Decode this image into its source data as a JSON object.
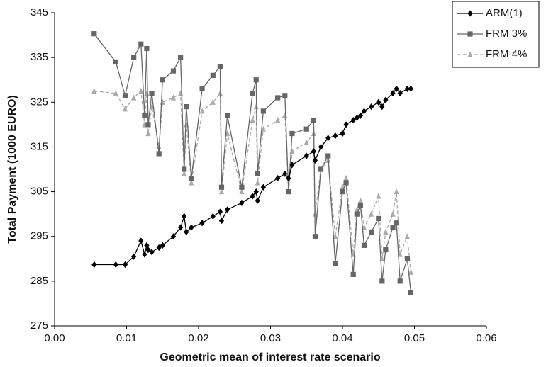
{
  "chart_data": {
    "type": "line",
    "x_label": "Geometric mean of interest rate scenario",
    "y_label": "Total Payment (1000 EURO)",
    "xlim": [
      0,
      0.06
    ],
    "xticks": [
      {
        "value": 0,
        "label": "0.00"
      },
      0.01,
      0.02,
      0.03,
      0.04,
      0.05,
      0.06
    ],
    "ylim": [
      275,
      345
    ],
    "yticks": [
      275,
      285,
      295,
      305,
      315,
      325,
      335,
      345
    ],
    "grid": false,
    "legend": "top-right",
    "x": [
      0.0055,
      0.0085,
      0.0098,
      0.011,
      0.012,
      0.0125,
      0.0128,
      0.013,
      0.0135,
      0.0145,
      0.015,
      0.0165,
      0.0175,
      0.018,
      0.0183,
      0.019,
      0.0205,
      0.022,
      0.023,
      0.0232,
      0.024,
      0.026,
      0.0275,
      0.028,
      0.0282,
      0.029,
      0.031,
      0.032,
      0.0325,
      0.033,
      0.035,
      0.036,
      0.0362,
      0.037,
      0.038,
      0.039,
      0.04,
      0.0405,
      0.0415,
      0.042,
      0.0425,
      0.043,
      0.044,
      0.045,
      0.0455,
      0.046,
      0.047,
      0.0475,
      0.048,
      0.049,
      0.0495
    ],
    "series": [
      {
        "name": "ARM(1)",
        "color": "#000000",
        "marker": "diamond",
        "dashed": false,
        "values": [
          288.7,
          288.7,
          288.7,
          290.5,
          294,
          291,
          293,
          292,
          291.5,
          292.5,
          293,
          295,
          297,
          299.5,
          296,
          297,
          298,
          299.5,
          300.5,
          298.5,
          301,
          302.5,
          304,
          305,
          303,
          306,
          308,
          309,
          308,
          311,
          313,
          314,
          312,
          315,
          317,
          317.5,
          318,
          320,
          321,
          321.5,
          322,
          323,
          324,
          325,
          324,
          325.5,
          327,
          328,
          327,
          328,
          328
        ]
      },
      {
        "name": "FRM 3%",
        "color": "#666666",
        "marker": "square",
        "dashed": false,
        "values": [
          340.3,
          334,
          326.5,
          335,
          338,
          322,
          337,
          320,
          327,
          313.5,
          330,
          332,
          335,
          310,
          324,
          308,
          328,
          331,
          333,
          306,
          322,
          306,
          327,
          330,
          309,
          323,
          326,
          326.5,
          305,
          318,
          319,
          321,
          295,
          310,
          313,
          289,
          305,
          307,
          286.5,
          300,
          302,
          293,
          296,
          299,
          285,
          292,
          297,
          298,
          285,
          290,
          282.5
        ]
      },
      {
        "name": "FRM 4%",
        "color": "#aaaaaa",
        "marker": "triangle",
        "dashed": true,
        "values": [
          327.5,
          327,
          323.5,
          326,
          327.5,
          320,
          327,
          318,
          324,
          315,
          325,
          326,
          327,
          309,
          320,
          307,
          323,
          325,
          327,
          305,
          318,
          305,
          321,
          324,
          307,
          319,
          321,
          322,
          305,
          314,
          316,
          318,
          300,
          310,
          312,
          295,
          306,
          308,
          291,
          301,
          303,
          297,
          300,
          304,
          290,
          296,
          300,
          305,
          291,
          295,
          287
        ]
      }
    ]
  }
}
